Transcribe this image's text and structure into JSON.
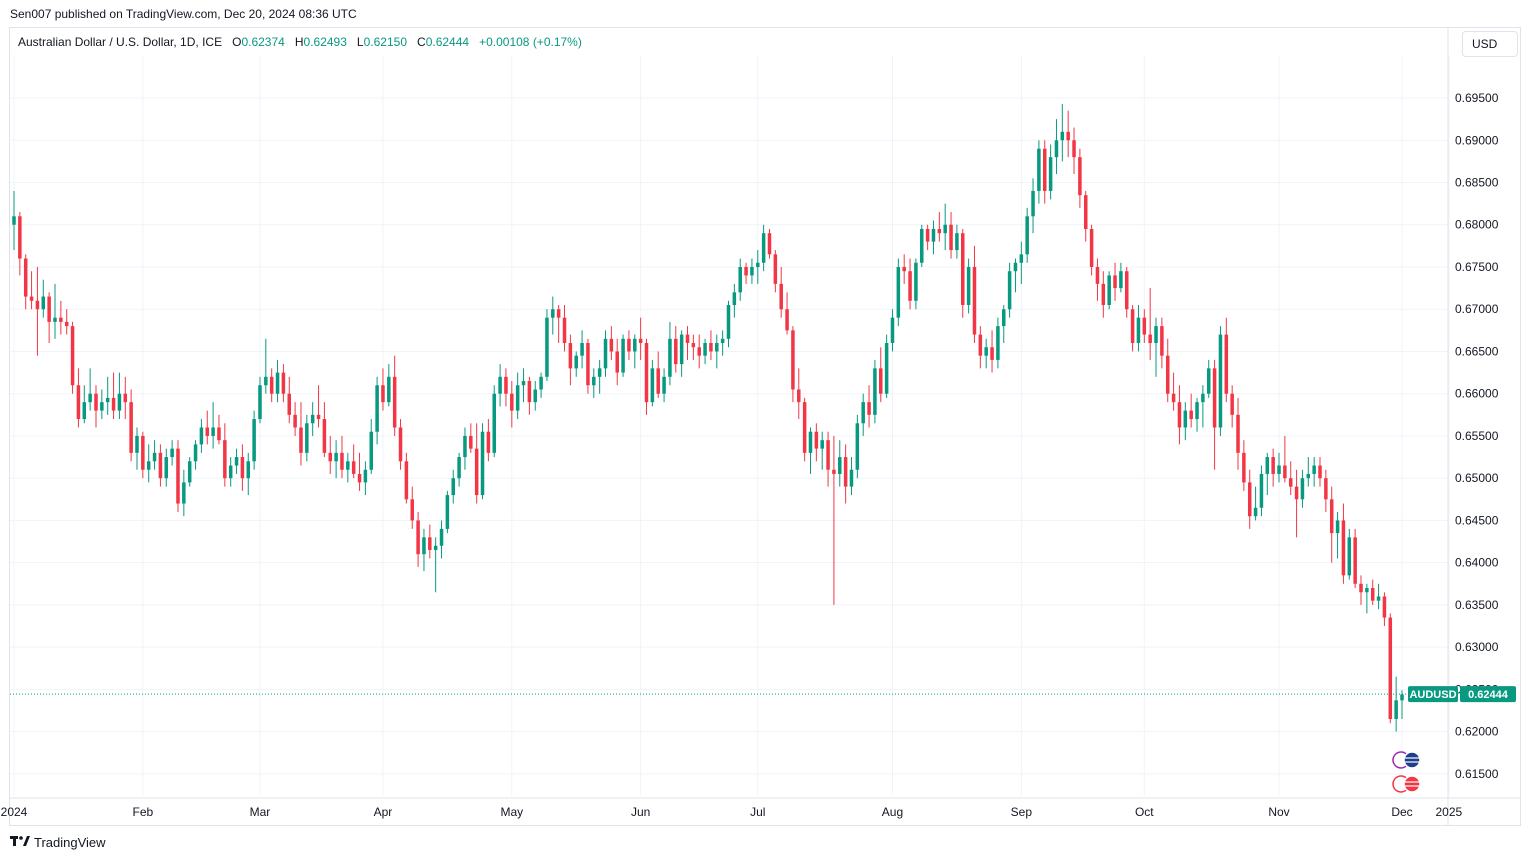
{
  "header": {
    "published": "Sen007 published on TradingView.com, Dec 20, 2024 08:36 UTC"
  },
  "legend": {
    "symbol": "Australian Dollar / U.S. Dollar, 1D, ICE",
    "o_label": "O",
    "o_value": "0.62374",
    "h_label": "H",
    "h_value": "0.62493",
    "l_label": "L",
    "l_value": "0.62150",
    "c_label": "C",
    "c_value": "0.62444",
    "change": "+0.00108 (+0.17%)"
  },
  "currency_button": "USD",
  "price_tag": {
    "symbol": "AUDUSD",
    "value": "0.62444",
    "color": "#089981"
  },
  "footer": {
    "brand": "TradingView",
    "logo_icon": "tradingview-logo-icon"
  },
  "colors": {
    "up": "#089981",
    "down": "#f23645",
    "grid": "#f0f3fa"
  },
  "chart_data": {
    "type": "candlestick",
    "symbol": "AUDUSD",
    "interval": "1D",
    "ylim": [
      0.6125,
      0.6995
    ],
    "yticks": [
      "0.69500",
      "0.69000",
      "0.68500",
      "0.68000",
      "0.67500",
      "0.67000",
      "0.66500",
      "0.66000",
      "0.65500",
      "0.65000",
      "0.64500",
      "0.64000",
      "0.63500",
      "0.63000",
      "0.62500",
      "0.62000",
      "0.61500"
    ],
    "xticks": [
      "2024",
      "Feb",
      "Mar",
      "Apr",
      "May",
      "Jun",
      "Jul",
      "Aug",
      "Sep",
      "Oct",
      "Nov",
      "Dec",
      "2025"
    ],
    "last_price": 0.62444,
    "grid": true,
    "ohlc": [
      [
        0.68,
        0.684,
        0.677,
        0.681
      ],
      [
        0.681,
        0.6815,
        0.674,
        0.676
      ],
      [
        0.676,
        0.6765,
        0.67,
        0.6715
      ],
      [
        0.6715,
        0.6745,
        0.67,
        0.671
      ],
      [
        0.671,
        0.675,
        0.6645,
        0.67
      ],
      [
        0.67,
        0.6735,
        0.669,
        0.6715
      ],
      [
        0.6715,
        0.672,
        0.666,
        0.6685
      ],
      [
        0.6685,
        0.673,
        0.6665,
        0.669
      ],
      [
        0.669,
        0.671,
        0.667,
        0.6685
      ],
      [
        0.6685,
        0.67,
        0.667,
        0.668
      ],
      [
        0.668,
        0.6685,
        0.66,
        0.661
      ],
      [
        0.661,
        0.663,
        0.656,
        0.657
      ],
      [
        0.657,
        0.661,
        0.6565,
        0.659
      ],
      [
        0.659,
        0.663,
        0.658,
        0.66
      ],
      [
        0.66,
        0.661,
        0.656,
        0.658
      ],
      [
        0.658,
        0.6605,
        0.657,
        0.659
      ],
      [
        0.659,
        0.662,
        0.6575,
        0.6595
      ],
      [
        0.6595,
        0.6625,
        0.657,
        0.658
      ],
      [
        0.658,
        0.6625,
        0.657,
        0.66
      ],
      [
        0.66,
        0.662,
        0.657,
        0.659
      ],
      [
        0.659,
        0.6605,
        0.652,
        0.653
      ],
      [
        0.653,
        0.656,
        0.651,
        0.655
      ],
      [
        0.655,
        0.6555,
        0.65,
        0.651
      ],
      [
        0.651,
        0.654,
        0.6495,
        0.652
      ],
      [
        0.652,
        0.6545,
        0.651,
        0.653
      ],
      [
        0.653,
        0.654,
        0.649,
        0.65
      ],
      [
        0.65,
        0.6535,
        0.649,
        0.6525
      ],
      [
        0.6525,
        0.6545,
        0.6515,
        0.6535
      ],
      [
        0.6535,
        0.6545,
        0.646,
        0.647
      ],
      [
        0.647,
        0.651,
        0.6455,
        0.6495
      ],
      [
        0.6495,
        0.6525,
        0.649,
        0.652
      ],
      [
        0.652,
        0.6545,
        0.651,
        0.654
      ],
      [
        0.654,
        0.657,
        0.653,
        0.656
      ],
      [
        0.656,
        0.658,
        0.654,
        0.655
      ],
      [
        0.655,
        0.659,
        0.6535,
        0.656
      ],
      [
        0.656,
        0.6575,
        0.654,
        0.6545
      ],
      [
        0.6545,
        0.6565,
        0.649,
        0.65
      ],
      [
        0.65,
        0.6525,
        0.649,
        0.6515
      ],
      [
        0.6515,
        0.6535,
        0.6505,
        0.6525
      ],
      [
        0.6525,
        0.654,
        0.6485,
        0.65
      ],
      [
        0.65,
        0.653,
        0.648,
        0.652
      ],
      [
        0.652,
        0.658,
        0.651,
        0.657
      ],
      [
        0.657,
        0.662,
        0.6565,
        0.661
      ],
      [
        0.661,
        0.6665,
        0.66,
        0.662
      ],
      [
        0.662,
        0.663,
        0.659,
        0.66
      ],
      [
        0.66,
        0.664,
        0.659,
        0.6625
      ],
      [
        0.6625,
        0.6635,
        0.659,
        0.66
      ],
      [
        0.66,
        0.662,
        0.6565,
        0.6575
      ],
      [
        0.6575,
        0.659,
        0.655,
        0.656
      ],
      [
        0.656,
        0.659,
        0.6515,
        0.653
      ],
      [
        0.653,
        0.6575,
        0.652,
        0.6565
      ],
      [
        0.6565,
        0.659,
        0.655,
        0.6575
      ],
      [
        0.6575,
        0.661,
        0.656,
        0.657
      ],
      [
        0.657,
        0.659,
        0.6525,
        0.653
      ],
      [
        0.653,
        0.655,
        0.6505,
        0.652
      ],
      [
        0.652,
        0.6545,
        0.65,
        0.653
      ],
      [
        0.653,
        0.655,
        0.65,
        0.651
      ],
      [
        0.651,
        0.653,
        0.6495,
        0.652
      ],
      [
        0.652,
        0.654,
        0.65,
        0.6505
      ],
      [
        0.6505,
        0.653,
        0.6485,
        0.6495
      ],
      [
        0.6495,
        0.652,
        0.648,
        0.651
      ],
      [
        0.651,
        0.657,
        0.6505,
        0.6555
      ],
      [
        0.6555,
        0.662,
        0.654,
        0.661
      ],
      [
        0.661,
        0.663,
        0.658,
        0.659
      ],
      [
        0.659,
        0.6635,
        0.6585,
        0.662
      ],
      [
        0.662,
        0.6645,
        0.655,
        0.656
      ],
      [
        0.656,
        0.657,
        0.651,
        0.652
      ],
      [
        0.652,
        0.653,
        0.647,
        0.6475
      ],
      [
        0.6475,
        0.649,
        0.644,
        0.645
      ],
      [
        0.645,
        0.646,
        0.6395,
        0.641
      ],
      [
        0.641,
        0.644,
        0.639,
        0.643
      ],
      [
        0.643,
        0.6445,
        0.6405,
        0.6415
      ],
      [
        0.6415,
        0.643,
        0.6365,
        0.642
      ],
      [
        0.642,
        0.645,
        0.6405,
        0.644
      ],
      [
        0.644,
        0.6485,
        0.6435,
        0.648
      ],
      [
        0.648,
        0.651,
        0.647,
        0.65
      ],
      [
        0.65,
        0.653,
        0.649,
        0.6525
      ],
      [
        0.6525,
        0.656,
        0.651,
        0.655
      ],
      [
        0.655,
        0.6565,
        0.653,
        0.6535
      ],
      [
        0.6535,
        0.6565,
        0.647,
        0.648
      ],
      [
        0.648,
        0.6565,
        0.6475,
        0.6555
      ],
      [
        0.6555,
        0.657,
        0.652,
        0.653
      ],
      [
        0.653,
        0.661,
        0.6525,
        0.66
      ],
      [
        0.66,
        0.6635,
        0.6585,
        0.662
      ],
      [
        0.662,
        0.663,
        0.6585,
        0.66
      ],
      [
        0.66,
        0.6615,
        0.656,
        0.658
      ],
      [
        0.658,
        0.6625,
        0.657,
        0.661
      ],
      [
        0.661,
        0.663,
        0.659,
        0.6615
      ],
      [
        0.6615,
        0.662,
        0.6575,
        0.659
      ],
      [
        0.659,
        0.6615,
        0.658,
        0.6605
      ],
      [
        0.6605,
        0.6625,
        0.6595,
        0.662
      ],
      [
        0.662,
        0.67,
        0.6615,
        0.669
      ],
      [
        0.669,
        0.6715,
        0.667,
        0.67
      ],
      [
        0.67,
        0.6705,
        0.666,
        0.669
      ],
      [
        0.669,
        0.6705,
        0.665,
        0.666
      ],
      [
        0.666,
        0.667,
        0.661,
        0.663
      ],
      [
        0.663,
        0.665,
        0.662,
        0.6645
      ],
      [
        0.6645,
        0.6675,
        0.663,
        0.666
      ],
      [
        0.666,
        0.6665,
        0.66,
        0.661
      ],
      [
        0.661,
        0.663,
        0.6595,
        0.662
      ],
      [
        0.662,
        0.664,
        0.66,
        0.663
      ],
      [
        0.663,
        0.6675,
        0.662,
        0.6665
      ],
      [
        0.6665,
        0.668,
        0.664,
        0.665
      ],
      [
        0.665,
        0.6665,
        0.661,
        0.6625
      ],
      [
        0.6625,
        0.667,
        0.662,
        0.6665
      ],
      [
        0.6665,
        0.6675,
        0.664,
        0.665
      ],
      [
        0.665,
        0.667,
        0.663,
        0.6665
      ],
      [
        0.6665,
        0.669,
        0.664,
        0.666
      ],
      [
        0.666,
        0.6665,
        0.6575,
        0.659
      ],
      [
        0.659,
        0.664,
        0.6585,
        0.663
      ],
      [
        0.663,
        0.665,
        0.6595,
        0.66
      ],
      [
        0.66,
        0.663,
        0.659,
        0.662
      ],
      [
        0.662,
        0.6685,
        0.661,
        0.6665
      ],
      [
        0.6665,
        0.668,
        0.6625,
        0.6635
      ],
      [
        0.6635,
        0.6675,
        0.662,
        0.667
      ],
      [
        0.667,
        0.668,
        0.664,
        0.666
      ],
      [
        0.666,
        0.667,
        0.664,
        0.6655
      ],
      [
        0.6655,
        0.667,
        0.663,
        0.6645
      ],
      [
        0.6645,
        0.6665,
        0.6635,
        0.666
      ],
      [
        0.666,
        0.6675,
        0.664,
        0.665
      ],
      [
        0.665,
        0.667,
        0.663,
        0.666
      ],
      [
        0.666,
        0.6675,
        0.6645,
        0.6665
      ],
      [
        0.6665,
        0.671,
        0.6655,
        0.6705
      ],
      [
        0.6705,
        0.673,
        0.669,
        0.672
      ],
      [
        0.672,
        0.676,
        0.671,
        0.675
      ],
      [
        0.675,
        0.6755,
        0.673,
        0.674
      ],
      [
        0.674,
        0.676,
        0.673,
        0.675
      ],
      [
        0.675,
        0.677,
        0.673,
        0.6755
      ],
      [
        0.6755,
        0.68,
        0.6745,
        0.679
      ],
      [
        0.679,
        0.6795,
        0.676,
        0.6765
      ],
      [
        0.6765,
        0.677,
        0.672,
        0.673
      ],
      [
        0.673,
        0.675,
        0.669,
        0.67
      ],
      [
        0.67,
        0.672,
        0.667,
        0.6675
      ],
      [
        0.6675,
        0.668,
        0.659,
        0.6605
      ],
      [
        0.6605,
        0.663,
        0.657,
        0.659
      ],
      [
        0.659,
        0.6595,
        0.652,
        0.653
      ],
      [
        0.653,
        0.656,
        0.6505,
        0.6555
      ],
      [
        0.6555,
        0.6565,
        0.652,
        0.6535
      ],
      [
        0.6535,
        0.6555,
        0.651,
        0.6545
      ],
      [
        0.6545,
        0.6555,
        0.649,
        0.651
      ],
      [
        0.651,
        0.655,
        0.635,
        0.6505
      ],
      [
        0.6505,
        0.6545,
        0.649,
        0.6525
      ],
      [
        0.6525,
        0.654,
        0.647,
        0.649
      ],
      [
        0.649,
        0.6525,
        0.648,
        0.651
      ],
      [
        0.651,
        0.6575,
        0.65,
        0.6565
      ],
      [
        0.6565,
        0.66,
        0.655,
        0.659
      ],
      [
        0.659,
        0.661,
        0.656,
        0.6575
      ],
      [
        0.6575,
        0.664,
        0.6565,
        0.663
      ],
      [
        0.663,
        0.6655,
        0.659,
        0.66
      ],
      [
        0.66,
        0.667,
        0.6595,
        0.666
      ],
      [
        0.666,
        0.67,
        0.665,
        0.669
      ],
      [
        0.669,
        0.676,
        0.668,
        0.675
      ],
      [
        0.675,
        0.6765,
        0.673,
        0.6745
      ],
      [
        0.6745,
        0.676,
        0.67,
        0.671
      ],
      [
        0.671,
        0.676,
        0.67,
        0.6755
      ],
      [
        0.6755,
        0.68,
        0.675,
        0.6795
      ],
      [
        0.6795,
        0.68,
        0.677,
        0.678
      ],
      [
        0.678,
        0.6805,
        0.6765,
        0.6795
      ],
      [
        0.6795,
        0.6815,
        0.678,
        0.679
      ],
      [
        0.679,
        0.6825,
        0.677,
        0.68
      ],
      [
        0.68,
        0.6815,
        0.676,
        0.677
      ],
      [
        0.677,
        0.68,
        0.676,
        0.679
      ],
      [
        0.679,
        0.6795,
        0.669,
        0.6705
      ],
      [
        0.6705,
        0.676,
        0.6695,
        0.675
      ],
      [
        0.675,
        0.6775,
        0.666,
        0.667
      ],
      [
        0.667,
        0.668,
        0.663,
        0.6645
      ],
      [
        0.6645,
        0.6665,
        0.663,
        0.6655
      ],
      [
        0.6655,
        0.6675,
        0.6625,
        0.664
      ],
      [
        0.664,
        0.669,
        0.663,
        0.668
      ],
      [
        0.668,
        0.6705,
        0.666,
        0.67
      ],
      [
        0.67,
        0.6755,
        0.669,
        0.6745
      ],
      [
        0.6745,
        0.676,
        0.672,
        0.6755
      ],
      [
        0.6755,
        0.678,
        0.673,
        0.6765
      ],
      [
        0.6765,
        0.682,
        0.6755,
        0.681
      ],
      [
        0.681,
        0.6855,
        0.679,
        0.684
      ],
      [
        0.684,
        0.69,
        0.6825,
        0.689
      ],
      [
        0.689,
        0.69,
        0.6825,
        0.684
      ],
      [
        0.684,
        0.6895,
        0.683,
        0.688
      ],
      [
        0.688,
        0.6925,
        0.686,
        0.69
      ],
      [
        0.69,
        0.6943,
        0.6875,
        0.691
      ],
      [
        0.691,
        0.6935,
        0.688,
        0.69
      ],
      [
        0.69,
        0.6915,
        0.686,
        0.688
      ],
      [
        0.688,
        0.689,
        0.682,
        0.6835
      ],
      [
        0.6835,
        0.684,
        0.678,
        0.6795
      ],
      [
        0.6795,
        0.68,
        0.674,
        0.675
      ],
      [
        0.675,
        0.676,
        0.671,
        0.673
      ],
      [
        0.673,
        0.6745,
        0.669,
        0.6705
      ],
      [
        0.6705,
        0.6745,
        0.67,
        0.674
      ],
      [
        0.674,
        0.6755,
        0.671,
        0.6725
      ],
      [
        0.6725,
        0.6755,
        0.672,
        0.6745
      ],
      [
        0.6745,
        0.675,
        0.669,
        0.67
      ],
      [
        0.67,
        0.6705,
        0.665,
        0.666
      ],
      [
        0.666,
        0.6705,
        0.665,
        0.669
      ],
      [
        0.669,
        0.67,
        0.666,
        0.667
      ],
      [
        0.667,
        0.6725,
        0.664,
        0.666
      ],
      [
        0.666,
        0.669,
        0.662,
        0.668
      ],
      [
        0.668,
        0.669,
        0.663,
        0.6645
      ],
      [
        0.6645,
        0.6665,
        0.659,
        0.66
      ],
      [
        0.66,
        0.6625,
        0.658,
        0.659
      ],
      [
        0.659,
        0.661,
        0.654,
        0.656
      ],
      [
        0.656,
        0.659,
        0.6545,
        0.658
      ],
      [
        0.658,
        0.66,
        0.656,
        0.657
      ],
      [
        0.657,
        0.6595,
        0.6555,
        0.659
      ],
      [
        0.659,
        0.661,
        0.656,
        0.66
      ],
      [
        0.66,
        0.664,
        0.6595,
        0.663
      ],
      [
        0.663,
        0.664,
        0.651,
        0.656
      ],
      [
        0.656,
        0.668,
        0.655,
        0.667
      ],
      [
        0.667,
        0.669,
        0.659,
        0.66
      ],
      [
        0.66,
        0.661,
        0.656,
        0.6575
      ],
      [
        0.6575,
        0.6595,
        0.651,
        0.653
      ],
      [
        0.653,
        0.6545,
        0.6485,
        0.6495
      ],
      [
        0.6495,
        0.651,
        0.644,
        0.6455
      ],
      [
        0.6455,
        0.649,
        0.645,
        0.6465
      ],
      [
        0.6465,
        0.6515,
        0.6455,
        0.6505
      ],
      [
        0.6505,
        0.653,
        0.648,
        0.6525
      ],
      [
        0.6525,
        0.6535,
        0.649,
        0.6505
      ],
      [
        0.6505,
        0.653,
        0.6495,
        0.6515
      ],
      [
        0.6515,
        0.655,
        0.6495,
        0.65
      ],
      [
        0.65,
        0.652,
        0.648,
        0.649
      ],
      [
        0.649,
        0.651,
        0.643,
        0.6475
      ],
      [
        0.6475,
        0.651,
        0.6465,
        0.65
      ],
      [
        0.65,
        0.6525,
        0.649,
        0.6505
      ],
      [
        0.6505,
        0.6525,
        0.649,
        0.6515
      ],
      [
        0.6515,
        0.6525,
        0.649,
        0.65
      ],
      [
        0.65,
        0.651,
        0.646,
        0.6475
      ],
      [
        0.6475,
        0.649,
        0.64,
        0.6435
      ],
      [
        0.6435,
        0.646,
        0.6405,
        0.645
      ],
      [
        0.645,
        0.647,
        0.6375,
        0.6385
      ],
      [
        0.6385,
        0.644,
        0.638,
        0.643
      ],
      [
        0.643,
        0.644,
        0.637,
        0.6375
      ],
      [
        0.6375,
        0.6385,
        0.635,
        0.6365
      ],
      [
        0.6365,
        0.6375,
        0.634,
        0.637
      ],
      [
        0.637,
        0.638,
        0.635,
        0.6355
      ],
      [
        0.6355,
        0.6375,
        0.6345,
        0.636
      ],
      [
        0.636,
        0.6365,
        0.6325,
        0.6335
      ],
      [
        0.6335,
        0.634,
        0.621,
        0.6215
      ],
      [
        0.6215,
        0.6265,
        0.62,
        0.6237
      ],
      [
        0.6237,
        0.6249,
        0.6215,
        0.6244
      ]
    ]
  }
}
